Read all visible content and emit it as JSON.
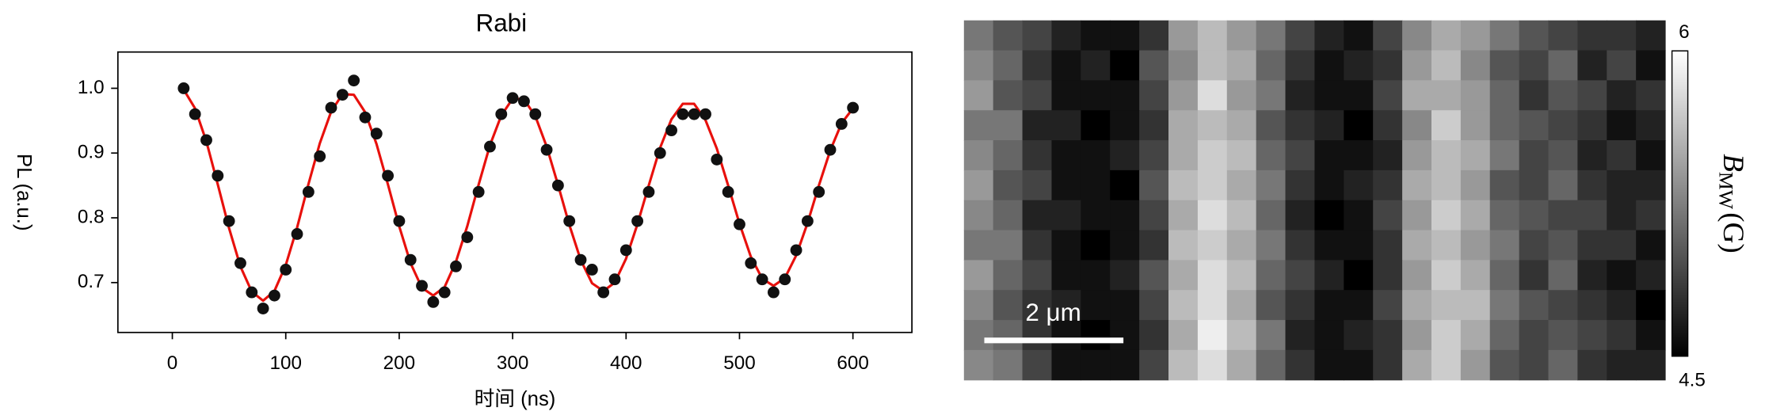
{
  "chart_data": [
    {
      "type": "scatter",
      "title": "Rabi",
      "x_label": "时间 (ns)",
      "y_label": "PL (a.u.)",
      "x": [
        10,
        20,
        30,
        40,
        50,
        60,
        70,
        80,
        90,
        100,
        110,
        120,
        130,
        140,
        150,
        160,
        170,
        180,
        190,
        200,
        210,
        220,
        230,
        240,
        250,
        260,
        270,
        280,
        290,
        300,
        310,
        320,
        330,
        340,
        350,
        360,
        370,
        380,
        390,
        400,
        410,
        420,
        430,
        440,
        450,
        460,
        470,
        480,
        490,
        500,
        510,
        520,
        530,
        540,
        550,
        560,
        570,
        580,
        590,
        600
      ],
      "series": [
        {
          "mode": "markers",
          "color": "#111111",
          "values": [
            1.0,
            0.96,
            0.92,
            0.865,
            0.795,
            0.73,
            0.685,
            0.66,
            0.68,
            0.72,
            0.775,
            0.84,
            0.895,
            0.97,
            0.99,
            1.012,
            0.955,
            0.93,
            0.865,
            0.795,
            0.735,
            0.695,
            0.67,
            0.685,
            0.725,
            0.77,
            0.84,
            0.91,
            0.96,
            0.985,
            0.98,
            0.96,
            0.905,
            0.85,
            0.795,
            0.735,
            0.72,
            0.685,
            0.705,
            0.75,
            0.795,
            0.84,
            0.9,
            0.935,
            0.96,
            0.96,
            0.96,
            0.89,
            0.84,
            0.79,
            0.73,
            0.705,
            0.685,
            0.705,
            0.75,
            0.795,
            0.84,
            0.905,
            0.945,
            0.97
          ]
        },
        {
          "mode": "line",
          "color": "#e8100c",
          "values": [
            0.998,
            0.969,
            0.918,
            0.852,
            0.784,
            0.725,
            0.686,
            0.672,
            0.687,
            0.727,
            0.785,
            0.852,
            0.915,
            0.964,
            0.991,
            0.99,
            0.963,
            0.914,
            0.852,
            0.787,
            0.73,
            0.692,
            0.68,
            0.693,
            0.732,
            0.787,
            0.851,
            0.912,
            0.958,
            0.984,
            0.983,
            0.957,
            0.91,
            0.851,
            0.789,
            0.735,
            0.699,
            0.687,
            0.7,
            0.737,
            0.79,
            0.85,
            0.908,
            0.952,
            0.976,
            0.976,
            0.951,
            0.907,
            0.85,
            0.791,
            0.74,
            0.706,
            0.695,
            0.707,
            0.742,
            0.792,
            0.85,
            0.904,
            0.946,
            0.969
          ]
        }
      ],
      "xlim": [
        -48,
        652
      ],
      "xticks": [
        0,
        100,
        200,
        300,
        400,
        500,
        600
      ],
      "ylim": [
        0.623,
        1.056
      ],
      "yticks": [
        0.7,
        0.8,
        0.9,
        {
          "value": 1,
          "label": "1.0"
        }
      ],
      "grid": false
    },
    {
      "type": "heatmap",
      "annotation": "2 μm",
      "colorbar": {
        "lim": [
          4.5,
          6
        ],
        "ticks": [
          4.5,
          6
        ],
        "label": "B",
        "label_sub": "MW",
        "label_unit": "(G)"
      },
      "values": [
        [
          5.2,
          5.0,
          4.9,
          4.7,
          4.6,
          4.6,
          4.8,
          5.4,
          5.6,
          5.4,
          5.2,
          4.9,
          4.7,
          4.6,
          4.9,
          5.3,
          5.5,
          5.4,
          5.2,
          5.0,
          4.9,
          4.8,
          4.8,
          4.7
        ],
        [
          5.3,
          5.1,
          4.8,
          4.6,
          4.7,
          4.5,
          5.0,
          5.3,
          5.6,
          5.5,
          5.1,
          4.8,
          4.6,
          4.7,
          4.8,
          5.4,
          5.6,
          5.3,
          5.0,
          4.9,
          5.1,
          4.7,
          4.9,
          4.6
        ],
        [
          5.4,
          5.0,
          4.9,
          4.6,
          4.6,
          4.6,
          4.9,
          5.4,
          5.8,
          5.4,
          5.2,
          4.7,
          4.6,
          4.6,
          4.9,
          5.5,
          5.5,
          5.4,
          5.1,
          4.8,
          5.0,
          4.9,
          4.7,
          4.8
        ],
        [
          5.2,
          5.2,
          4.7,
          4.7,
          4.5,
          4.6,
          4.8,
          5.5,
          5.6,
          5.5,
          5.0,
          4.8,
          4.7,
          4.5,
          4.8,
          5.3,
          5.7,
          5.4,
          5.1,
          5.0,
          4.9,
          4.8,
          4.6,
          4.7
        ],
        [
          5.3,
          5.1,
          4.8,
          4.6,
          4.6,
          4.7,
          4.9,
          5.5,
          5.7,
          5.6,
          5.1,
          4.9,
          4.6,
          4.6,
          4.7,
          5.4,
          5.6,
          5.5,
          5.2,
          4.9,
          5.0,
          4.7,
          4.8,
          4.6
        ],
        [
          5.4,
          5.0,
          4.9,
          4.6,
          4.6,
          4.5,
          5.0,
          5.6,
          5.7,
          5.5,
          5.2,
          4.8,
          4.6,
          4.7,
          4.8,
          5.5,
          5.6,
          5.4,
          5.0,
          4.9,
          5.1,
          4.8,
          4.7,
          4.7
        ],
        [
          5.3,
          5.1,
          4.7,
          4.7,
          4.6,
          4.6,
          4.9,
          5.5,
          5.8,
          5.6,
          5.1,
          4.7,
          4.5,
          4.6,
          4.9,
          5.4,
          5.7,
          5.5,
          5.1,
          5.0,
          4.9,
          4.9,
          4.7,
          4.8
        ],
        [
          5.2,
          5.2,
          4.8,
          4.6,
          4.5,
          4.6,
          4.8,
          5.6,
          5.7,
          5.5,
          5.2,
          4.8,
          4.6,
          4.6,
          4.8,
          5.5,
          5.6,
          5.4,
          5.2,
          4.9,
          5.0,
          4.8,
          4.8,
          4.6
        ],
        [
          5.4,
          5.1,
          4.9,
          4.6,
          4.6,
          4.7,
          5.0,
          5.5,
          5.8,
          5.6,
          5.1,
          4.9,
          4.7,
          4.5,
          4.8,
          5.4,
          5.7,
          5.5,
          5.1,
          4.8,
          5.1,
          4.7,
          4.6,
          4.7
        ],
        [
          5.3,
          5.0,
          4.8,
          4.7,
          4.6,
          4.6,
          4.9,
          5.6,
          5.8,
          5.5,
          5.0,
          4.8,
          4.6,
          4.6,
          4.9,
          5.5,
          5.6,
          5.6,
          5.2,
          5.0,
          4.9,
          4.8,
          4.7,
          4.5
        ],
        [
          5.2,
          5.1,
          4.8,
          4.6,
          4.5,
          4.6,
          4.8,
          5.5,
          5.9,
          5.6,
          5.2,
          4.7,
          4.6,
          4.7,
          4.8,
          5.4,
          5.7,
          5.5,
          5.1,
          4.9,
          5.0,
          4.9,
          4.8,
          4.6
        ],
        [
          5.3,
          5.2,
          4.9,
          4.6,
          4.6,
          4.6,
          4.9,
          5.6,
          5.8,
          5.5,
          5.1,
          4.8,
          4.6,
          4.6,
          4.8,
          5.5,
          5.7,
          5.4,
          5.0,
          4.9,
          5.1,
          4.8,
          4.7,
          4.7
        ]
      ]
    }
  ]
}
